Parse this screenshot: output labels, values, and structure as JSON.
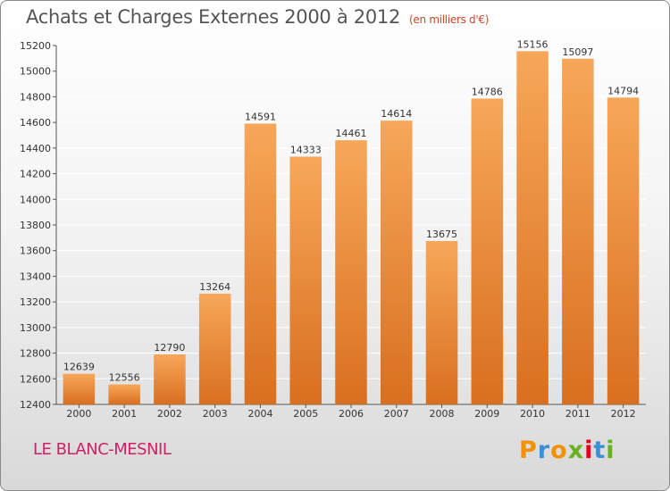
{
  "header": {
    "title": "Achats et Charges Externes 2000 à 2012",
    "subtitle": "(en milliers d'€)"
  },
  "footer": {
    "commune": "LE BLANC-MESNIL",
    "logo_text": "Proxiti"
  },
  "colors": {
    "bar_top": "#f7a75a",
    "bar_bottom": "#d96f1f",
    "grid": "#ffffff",
    "logo_letters": [
      "#f39200",
      "#3d8fd6",
      "#f39200",
      "#6ab023",
      "#e2001a",
      "#3d8fd6",
      "#6ab023"
    ]
  },
  "chart_data": {
    "type": "bar",
    "title": "Achats et Charges Externes 2000 à 2012",
    "subtitle": "(en milliers d'€)",
    "xlabel": "",
    "ylabel": "",
    "ylim": [
      12400,
      15200
    ],
    "yticks": [
      12400,
      12600,
      12800,
      13000,
      13200,
      13400,
      13600,
      13800,
      14000,
      14200,
      14400,
      14600,
      14800,
      15000,
      15200
    ],
    "grid": true,
    "categories": [
      "2000",
      "2001",
      "2002",
      "2003",
      "2004",
      "2005",
      "2006",
      "2007",
      "2008",
      "2009",
      "2010",
      "2011",
      "2012"
    ],
    "values": [
      12639,
      12556,
      12790,
      13264,
      14591,
      14333,
      14461,
      14614,
      13675,
      14786,
      15156,
      15097,
      14794
    ]
  }
}
